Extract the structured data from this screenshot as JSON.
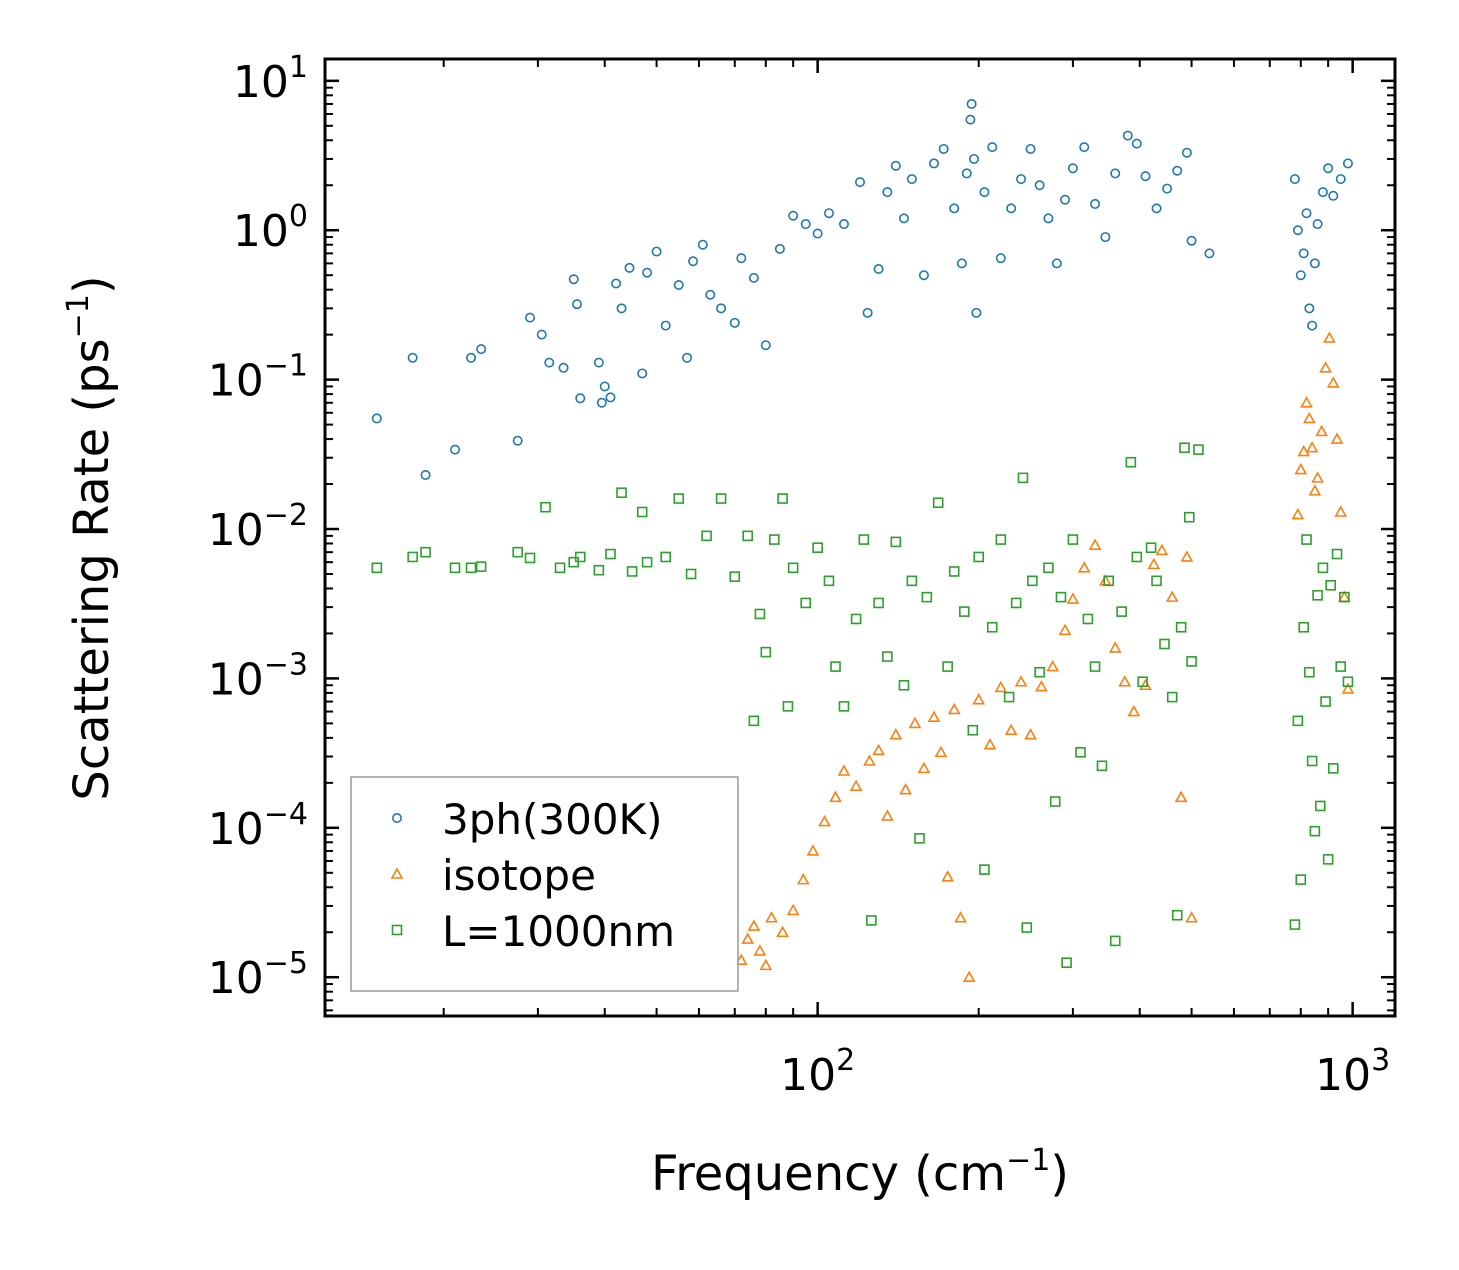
{
  "chart_data": {
    "type": "scatter",
    "title": "",
    "xlabel": "Frequency (cm",
    "xlabel_sup": "−1",
    "xlabel_end": ")",
    "ylabel": "Scattering Rate (ps",
    "ylabel_sup": "−1",
    "ylabel_end": ")",
    "x_scale": "log",
    "y_scale": "log",
    "xlim": [
      12,
      1200
    ],
    "ylim": [
      5.5e-06,
      14
    ],
    "x_ticks": [
      {
        "value": 100,
        "base": "10",
        "exp": "2"
      },
      {
        "value": 1000,
        "base": "10",
        "exp": "3"
      }
    ],
    "y_ticks": [
      {
        "value": 10,
        "base": "10",
        "exp": "1"
      },
      {
        "value": 1,
        "base": "10",
        "exp": "0"
      },
      {
        "value": 0.1,
        "base": "10",
        "exp": "−1"
      },
      {
        "value": 0.01,
        "base": "10",
        "exp": "−2"
      },
      {
        "value": 0.001,
        "base": "10",
        "exp": "−3"
      },
      {
        "value": 0.0001,
        "base": "10",
        "exp": "−4"
      },
      {
        "value": 1e-05,
        "base": "10",
        "exp": "−5"
      }
    ],
    "legend_position": "lower-left",
    "series": [
      {
        "name": "3ph(300K)",
        "marker": "circle",
        "color": "#1f77b4",
        "points": [
          [
            15,
            0.055
          ],
          [
            17.5,
            0.14
          ],
          [
            18.5,
            0.023
          ],
          [
            21,
            0.034
          ],
          [
            22.5,
            0.14
          ],
          [
            23.5,
            0.16
          ],
          [
            27.5,
            0.039
          ],
          [
            29,
            0.26
          ],
          [
            30.5,
            0.2
          ],
          [
            31.5,
            0.13
          ],
          [
            33.5,
            0.12
          ],
          [
            35,
            0.47
          ],
          [
            35.5,
            0.32
          ],
          [
            36,
            0.075
          ],
          [
            39,
            0.13
          ],
          [
            39.5,
            0.07
          ],
          [
            40,
            0.09
          ],
          [
            41,
            0.076
          ],
          [
            42,
            0.44
          ],
          [
            43,
            0.3
          ],
          [
            44.5,
            0.56
          ],
          [
            47,
            0.11
          ],
          [
            48,
            0.52
          ],
          [
            50,
            0.72
          ],
          [
            52,
            0.23
          ],
          [
            55,
            0.43
          ],
          [
            57,
            0.14
          ],
          [
            58.5,
            0.62
          ],
          [
            61,
            0.8
          ],
          [
            63,
            0.37
          ],
          [
            66,
            0.3
          ],
          [
            70,
            0.24
          ],
          [
            72,
            0.65
          ],
          [
            76,
            0.48
          ],
          [
            80,
            0.17
          ],
          [
            85,
            0.75
          ],
          [
            90,
            1.25
          ],
          [
            95,
            1.1
          ],
          [
            100,
            0.95
          ],
          [
            105,
            1.3
          ],
          [
            112,
            1.1
          ],
          [
            120,
            2.1
          ],
          [
            124,
            0.28
          ],
          [
            130,
            0.55
          ],
          [
            135,
            1.8
          ],
          [
            140,
            2.7
          ],
          [
            145,
            1.2
          ],
          [
            150,
            2.2
          ],
          [
            158,
            0.5
          ],
          [
            165,
            2.8
          ],
          [
            172,
            3.5
          ],
          [
            180,
            1.4
          ],
          [
            186,
            0.6
          ],
          [
            190,
            2.4
          ],
          [
            193,
            5.5
          ],
          [
            194,
            7.0
          ],
          [
            196,
            3.0
          ],
          [
            198,
            0.28
          ],
          [
            205,
            1.8
          ],
          [
            212,
            3.6
          ],
          [
            220,
            0.65
          ],
          [
            230,
            1.4
          ],
          [
            240,
            2.2
          ],
          [
            250,
            3.5
          ],
          [
            260,
            2.0
          ],
          [
            270,
            1.2
          ],
          [
            280,
            0.6
          ],
          [
            290,
            1.6
          ],
          [
            300,
            2.6
          ],
          [
            315,
            3.6
          ],
          [
            330,
            1.5
          ],
          [
            345,
            0.9
          ],
          [
            360,
            2.4
          ],
          [
            380,
            4.3
          ],
          [
            395,
            3.8
          ],
          [
            410,
            2.3
          ],
          [
            430,
            1.4
          ],
          [
            450,
            1.9
          ],
          [
            470,
            2.5
          ],
          [
            490,
            3.3
          ],
          [
            500,
            0.85
          ],
          [
            540,
            0.7
          ],
          [
            780,
            2.2
          ],
          [
            790,
            1.0
          ],
          [
            800,
            0.5
          ],
          [
            810,
            0.7
          ],
          [
            820,
            1.3
          ],
          [
            830,
            0.3
          ],
          [
            840,
            0.23
          ],
          [
            850,
            0.6
          ],
          [
            860,
            1.1
          ],
          [
            880,
            1.8
          ],
          [
            900,
            2.6
          ],
          [
            920,
            1.7
          ],
          [
            950,
            2.2
          ],
          [
            980,
            2.8
          ]
        ]
      },
      {
        "name": "isotope",
        "marker": "triangle",
        "color": "#ff7f0e",
        "points": [
          [
            72,
            1.3e-05
          ],
          [
            74,
            1.8e-05
          ],
          [
            76,
            2.2e-05
          ],
          [
            78,
            1.5e-05
          ],
          [
            80,
            1.2e-05
          ],
          [
            82,
            2.5e-05
          ],
          [
            86,
            2e-05
          ],
          [
            90,
            2.8e-05
          ],
          [
            94,
            4.5e-05
          ],
          [
            98,
            7e-05
          ],
          [
            103,
            0.00011
          ],
          [
            108,
            0.00016
          ],
          [
            112,
            0.00024
          ],
          [
            118,
            0.00019
          ],
          [
            125,
            0.00028
          ],
          [
            130,
            0.00033
          ],
          [
            135,
            0.00012
          ],
          [
            140,
            0.00042
          ],
          [
            146,
            0.00018
          ],
          [
            152,
            0.0005
          ],
          [
            158,
            0.00025
          ],
          [
            165,
            0.00055
          ],
          [
            170,
            0.00032
          ],
          [
            175,
            4.7e-05
          ],
          [
            180,
            0.00062
          ],
          [
            185,
            2.5e-05
          ],
          [
            192,
            1e-05
          ],
          [
            200,
            0.00072
          ],
          [
            210,
            0.00036
          ],
          [
            220,
            0.00087
          ],
          [
            230,
            0.00045
          ],
          [
            240,
            0.00095
          ],
          [
            250,
            0.00042
          ],
          [
            262,
            0.00088
          ],
          [
            275,
            0.0012
          ],
          [
            290,
            0.0021
          ],
          [
            300,
            0.0034
          ],
          [
            315,
            0.0055
          ],
          [
            330,
            0.0078
          ],
          [
            345,
            0.0045
          ],
          [
            360,
            0.0016
          ],
          [
            375,
            0.00095
          ],
          [
            390,
            0.0006
          ],
          [
            410,
            0.0009
          ],
          [
            425,
            0.0058
          ],
          [
            440,
            0.0072
          ],
          [
            460,
            0.0035
          ],
          [
            478,
            0.00016
          ],
          [
            490,
            0.0065
          ],
          [
            500,
            2.5e-05
          ],
          [
            790,
            0.0125
          ],
          [
            800,
            0.025
          ],
          [
            810,
            0.033
          ],
          [
            820,
            0.07
          ],
          [
            830,
            0.055
          ],
          [
            840,
            0.035
          ],
          [
            850,
            0.018
          ],
          [
            860,
            0.022
          ],
          [
            875,
            0.045
          ],
          [
            890,
            0.12
          ],
          [
            905,
            0.19
          ],
          [
            920,
            0.095
          ],
          [
            935,
            0.04
          ],
          [
            950,
            0.013
          ],
          [
            965,
            0.0035
          ],
          [
            980,
            0.00085
          ]
        ]
      },
      {
        "name": "L=1000nm",
        "marker": "square",
        "color": "#2ca02c",
        "points": [
          [
            15,
            0.0055
          ],
          [
            17.5,
            0.0065
          ],
          [
            18.5,
            0.007
          ],
          [
            21,
            0.0055
          ],
          [
            22.5,
            0.0055
          ],
          [
            23.5,
            0.0056
          ],
          [
            27.5,
            0.007
          ],
          [
            29,
            0.0064
          ],
          [
            31,
            0.014
          ],
          [
            33,
            0.0055
          ],
          [
            35,
            0.006
          ],
          [
            36,
            0.0065
          ],
          [
            39,
            0.0053
          ],
          [
            41,
            0.0068
          ],
          [
            43,
            0.0175
          ],
          [
            45,
            0.0052
          ],
          [
            47,
            0.013
          ],
          [
            48,
            0.006
          ],
          [
            52,
            0.0065
          ],
          [
            55,
            0.016
          ],
          [
            58,
            0.005
          ],
          [
            62,
            0.009
          ],
          [
            66,
            0.016
          ],
          [
            70,
            0.0048
          ],
          [
            74,
            0.009
          ],
          [
            76,
            0.00052
          ],
          [
            78,
            0.0027
          ],
          [
            80,
            0.0015
          ],
          [
            83,
            0.0085
          ],
          [
            86,
            0.016
          ],
          [
            88,
            0.00065
          ],
          [
            90,
            0.0055
          ],
          [
            95,
            0.0032
          ],
          [
            100,
            0.0075
          ],
          [
            105,
            0.0045
          ],
          [
            108,
            0.0012
          ],
          [
            112,
            0.00065
          ],
          [
            118,
            0.0025
          ],
          [
            122,
            0.0085
          ],
          [
            126,
            2.4e-05
          ],
          [
            130,
            0.0032
          ],
          [
            135,
            0.0014
          ],
          [
            140,
            0.0082
          ],
          [
            145,
            0.0009
          ],
          [
            150,
            0.0045
          ],
          [
            155,
            8.5e-05
          ],
          [
            160,
            0.0035
          ],
          [
            168,
            0.015
          ],
          [
            175,
            0.0012
          ],
          [
            180,
            0.0052
          ],
          [
            188,
            0.0028
          ],
          [
            195,
            0.00045
          ],
          [
            200,
            0.0065
          ],
          [
            205,
            5.25e-05
          ],
          [
            212,
            0.0022
          ],
          [
            220,
            0.0085
          ],
          [
            228,
            0.00075
          ],
          [
            235,
            0.0032
          ],
          [
            242,
            0.022
          ],
          [
            246,
            2.15e-05
          ],
          [
            252,
            0.0045
          ],
          [
            260,
            0.0011
          ],
          [
            270,
            0.0055
          ],
          [
            278,
            0.00015
          ],
          [
            285,
            0.0035
          ],
          [
            292,
            1.25e-05
          ],
          [
            300,
            0.0085
          ],
          [
            310,
            0.00032
          ],
          [
            320,
            0.0025
          ],
          [
            330,
            0.0012
          ],
          [
            340,
            0.00026
          ],
          [
            350,
            0.0045
          ],
          [
            360,
            1.75e-05
          ],
          [
            370,
            0.0028
          ],
          [
            385,
            0.028
          ],
          [
            395,
            0.0065
          ],
          [
            405,
            0.00095
          ],
          [
            420,
            0.0075
          ],
          [
            430,
            0.0045
          ],
          [
            445,
            0.0017
          ],
          [
            460,
            0.00075
          ],
          [
            470,
            2.6e-05
          ],
          [
            478,
            0.0022
          ],
          [
            485,
            0.035
          ],
          [
            495,
            0.012
          ],
          [
            500,
            0.0013
          ],
          [
            515,
            0.034
          ],
          [
            780,
            2.25e-05
          ],
          [
            790,
            0.00052
          ],
          [
            800,
            4.5e-05
          ],
          [
            810,
            0.0022
          ],
          [
            820,
            0.0085
          ],
          [
            830,
            0.0011
          ],
          [
            840,
            0.00028
          ],
          [
            850,
            9.5e-05
          ],
          [
            860,
            0.0036
          ],
          [
            870,
            0.00014
          ],
          [
            880,
            0.0055
          ],
          [
            890,
            0.0007
          ],
          [
            900,
            6.15e-05
          ],
          [
            910,
            0.0042
          ],
          [
            920,
            0.00025
          ],
          [
            935,
            0.0068
          ],
          [
            950,
            0.0012
          ],
          [
            965,
            0.0035
          ],
          [
            980,
            0.00095
          ]
        ]
      }
    ]
  }
}
